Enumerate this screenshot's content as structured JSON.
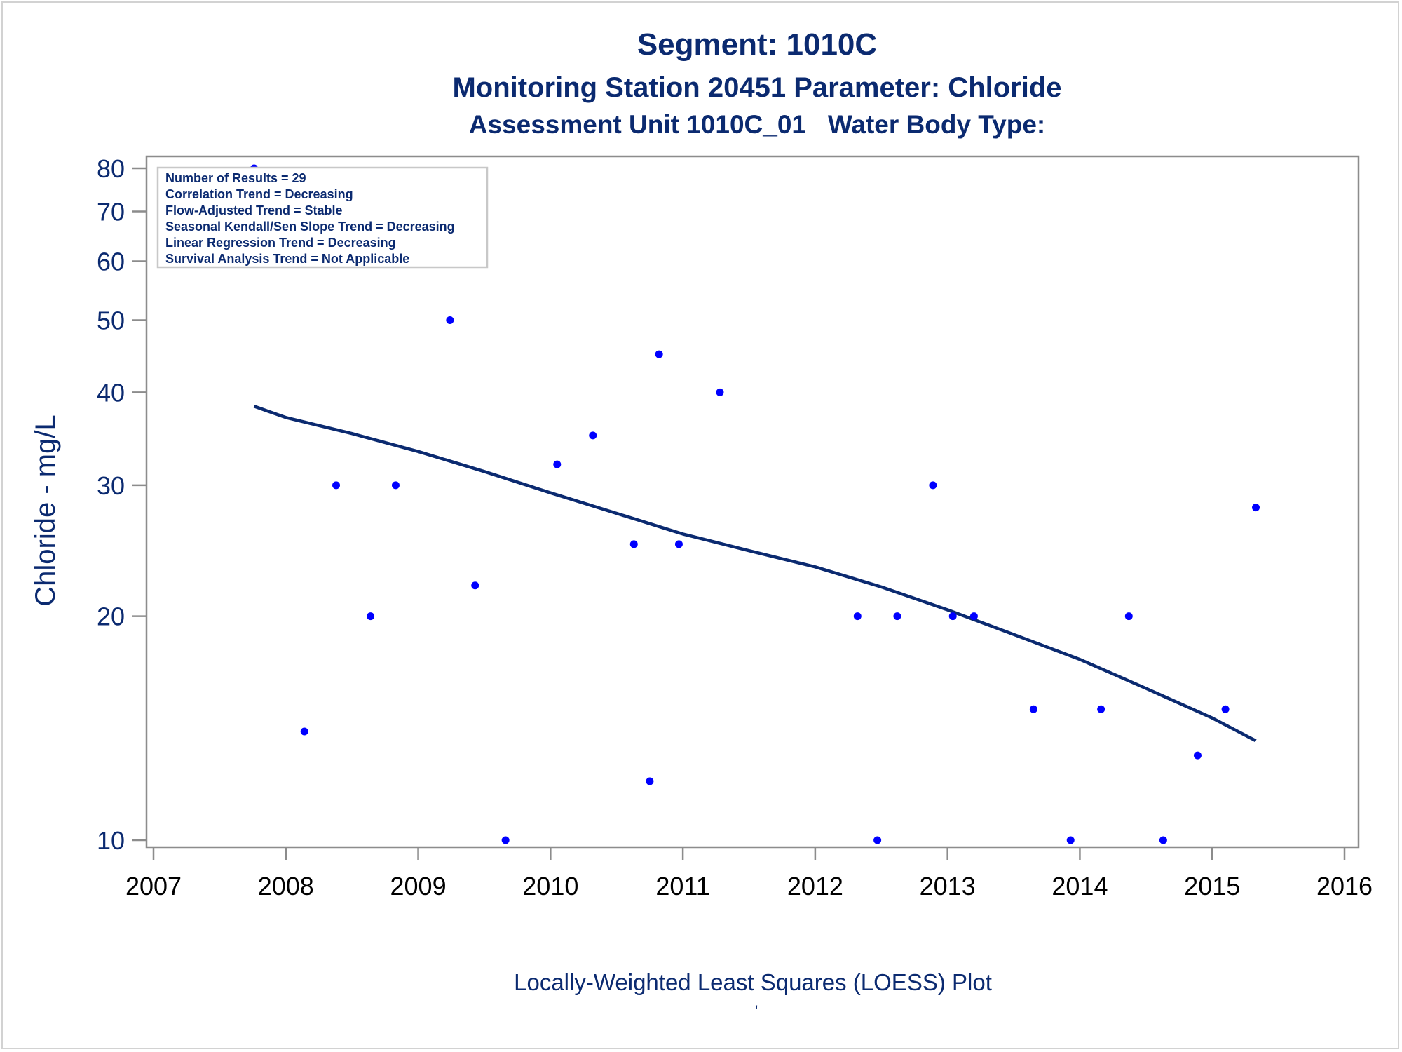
{
  "chart_data": {
    "type": "scatter",
    "title": "Segment: 1010C",
    "subtitle": "Monitoring Station 20451 Parameter: Chloride",
    "subtitle2": "Assessment Unit 1010C_01   Water Body Type:",
    "xlabel": "Locally-Weighted Least Squares (LOESS) Plot",
    "footnote": "'",
    "ylabel": "Chloride - mg/L",
    "y_scale": "log",
    "xlim": [
      2007,
      2016
    ],
    "ylim": [
      10,
      80
    ],
    "x_ticks": [
      "2007",
      "2008",
      "2009",
      "2010",
      "2011",
      "2012",
      "2013",
      "2014",
      "2015",
      "2016"
    ],
    "y_ticks": [
      "10",
      "20",
      "30",
      "40",
      "50",
      "60",
      "70",
      "80"
    ],
    "grid": false,
    "legend_position": "top-left",
    "stats": [
      "Number of Results = 29",
      "Correlation Trend = Decreasing",
      "Flow-Adjusted Trend = Stable",
      "Seasonal Kendall/Sen Slope Trend = Decreasing",
      "Linear Regression Trend = Decreasing",
      "Survival Analysis Trend = Not Applicable"
    ],
    "series": [
      {
        "kind": "points",
        "color": "#0000ff",
        "x": [
          2007.76,
          2008.14,
          2008.38,
          2008.64,
          2008.83,
          2009.24,
          2009.43,
          2009.66,
          2010.05,
          2010.32,
          2010.63,
          2010.75,
          2010.82,
          2010.97,
          2011.28,
          2012.32,
          2012.47,
          2012.62,
          2012.89,
          2013.04,
          2013.2,
          2013.65,
          2013.93,
          2014.16,
          2014.37,
          2014.63,
          2014.89,
          2015.1,
          2015.33
        ],
        "y": [
          80,
          14,
          30,
          20,
          30,
          50,
          22,
          10,
          32,
          35,
          25,
          12,
          45,
          25,
          40,
          20,
          10,
          20,
          30,
          20,
          20,
          15,
          10,
          15,
          20,
          10,
          13,
          15,
          28
        ]
      },
      {
        "kind": "loess",
        "color": "#0b2a70",
        "x": [
          2007.76,
          2008.0,
          2008.5,
          2009.0,
          2009.5,
          2010.0,
          2010.5,
          2011.0,
          2011.5,
          2012.0,
          2012.5,
          2013.0,
          2013.5,
          2014.0,
          2014.5,
          2015.0,
          2015.33
        ],
        "y": [
          38.3,
          37.0,
          35.2,
          33.3,
          31.3,
          29.3,
          27.5,
          25.8,
          24.5,
          23.3,
          21.9,
          20.4,
          18.9,
          17.5,
          16.0,
          14.6,
          13.6
        ]
      }
    ]
  }
}
